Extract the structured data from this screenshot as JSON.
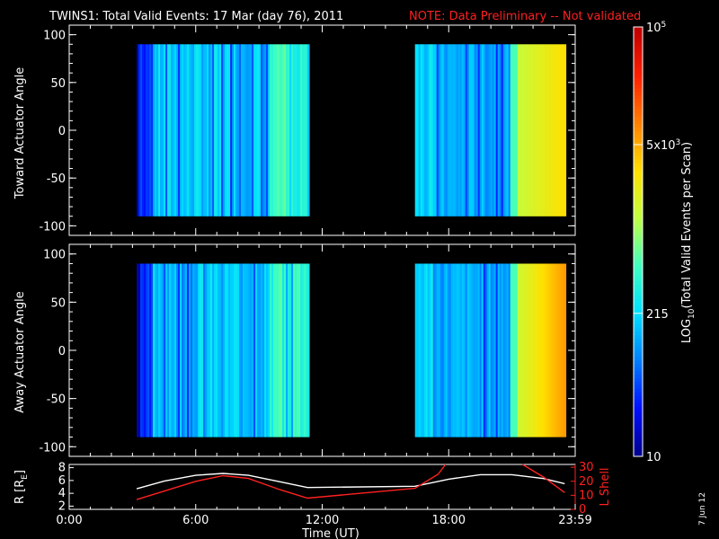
{
  "title": {
    "main": "TWINS1: Total Valid Events: 17 Mar (day  76), 2011",
    "note": "NOTE: Data Preliminary -- Not validated",
    "note_color": "#ff2020"
  },
  "stamp": "7 Jun 12",
  "colorbar": {
    "label_prefix": "LOG",
    "label_sub": "10",
    "label_suffix": "(Total Valid  Events per Scan)",
    "tick_labels": [
      {
        "base": "10",
        "exp": "5",
        "frac": 1.0
      },
      {
        "base": "5x10",
        "exp": "3",
        "frac": 0.726
      },
      {
        "base": "215",
        "exp": "",
        "frac": 0.333
      },
      {
        "base": "10",
        "exp": "",
        "frac": 0.0
      }
    ],
    "colors": [
      "#000090",
      "#0010ff",
      "#0080ff",
      "#00e0ff",
      "#40ffc0",
      "#c0ff40",
      "#ffe000",
      "#ff8000",
      "#ff2000",
      "#c00000"
    ]
  },
  "chart_data": [
    {
      "type": "heatmap",
      "panel": "top",
      "ylabel": "Toward Actuator Angle",
      "ylim": [
        -110,
        110
      ],
      "yticks": [
        -100,
        -50,
        0,
        50,
        100
      ],
      "ytick_labels": [
        "-100",
        "-50",
        "0",
        "50",
        "100"
      ],
      "xlim_hours": [
        0,
        24
      ],
      "data_ranges_hours": [
        [
          3.2,
          11.3
        ],
        [
          16.4,
          23.5
        ]
      ],
      "angle_range": [
        -90,
        90
      ]
    },
    {
      "type": "heatmap",
      "panel": "middle",
      "ylabel": "Away Actuator Angle",
      "ylim": [
        -110,
        110
      ],
      "yticks": [
        -100,
        -50,
        0,
        50,
        100
      ],
      "ytick_labels": [
        "-100",
        "-50",
        "0",
        "50",
        "100"
      ],
      "xlim_hours": [
        0,
        24
      ],
      "data_ranges_hours": [
        [
          3.2,
          11.3
        ],
        [
          16.4,
          23.5
        ]
      ],
      "angle_range": [
        -90,
        90
      ]
    },
    {
      "type": "line",
      "panel": "bottom",
      "ylabel_left": "R [R",
      "ylabel_left_sub": "E",
      "ylabel_left_suffix": "]",
      "ylabel_right": "L Shell",
      "ylim_left": [
        1.5,
        8.5
      ],
      "yticks_left": [
        2,
        4,
        6,
        8
      ],
      "ylim_right": [
        0,
        32
      ],
      "yticks_right": [
        0,
        10,
        20,
        30
      ],
      "xlabel": "Time (UT)",
      "xticks_hours": [
        0,
        6,
        12,
        18,
        24
      ],
      "xtick_labels": [
        "0:00",
        "6:00",
        "12:00",
        "18:00",
        "23:59"
      ],
      "series": [
        {
          "axis": "left",
          "color": "#ffffff",
          "x": [
            3.2,
            4.5,
            6.0,
            7.3,
            8.5,
            10.0,
            11.3,
            16.4,
            18.0,
            19.5,
            21.0,
            22.5,
            23.5
          ],
          "y": [
            4.7,
            5.9,
            6.8,
            7.1,
            6.8,
            5.8,
            4.9,
            5.1,
            6.2,
            6.9,
            6.9,
            6.3,
            5.5
          ]
        },
        {
          "axis": "right",
          "color": "#ff2020",
          "x": [
            3.2,
            4.5,
            6.0,
            7.3,
            8.5,
            10.0,
            11.3,
            16.4,
            17.5,
            17.85
          ],
          "y": [
            7,
            13,
            20,
            24,
            22,
            14,
            8,
            15,
            25,
            32
          ]
        },
        {
          "axis": "right",
          "color": "#ff2020",
          "x": [
            21.5,
            22.5,
            23.5
          ],
          "y": [
            32,
            23,
            12
          ]
        }
      ]
    }
  ]
}
